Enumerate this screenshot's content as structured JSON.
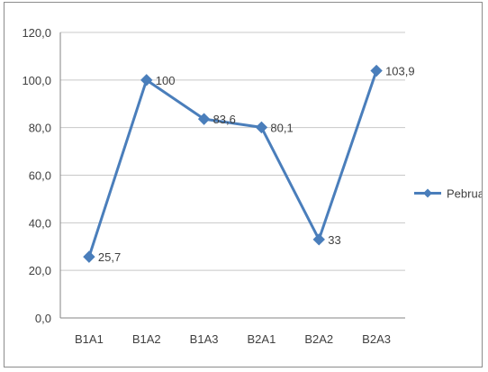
{
  "chart_data": {
    "type": "line",
    "categories": [
      "B1A1",
      "B1A2",
      "B1A3",
      "B2A1",
      "B2A2",
      "B2A3"
    ],
    "series": [
      {
        "name": "Pebruari",
        "values": [
          25.7,
          100,
          83.6,
          80.1,
          33,
          103.9
        ],
        "data_labels": [
          "25,7",
          "100",
          "83,6",
          "80,1",
          "33",
          "103,9"
        ],
        "color": "#4a7ebb"
      }
    ],
    "y_ticks": [
      "0,0",
      "20,0",
      "40,0",
      "60,0",
      "80,0",
      "100,0",
      "120,0"
    ],
    "ylim": [
      0,
      120
    ],
    "y_tick_step": 20,
    "grid": "horizontal",
    "legend_position": "right",
    "gridline_color": "#c8c8c8",
    "axis_color": "#868686"
  }
}
